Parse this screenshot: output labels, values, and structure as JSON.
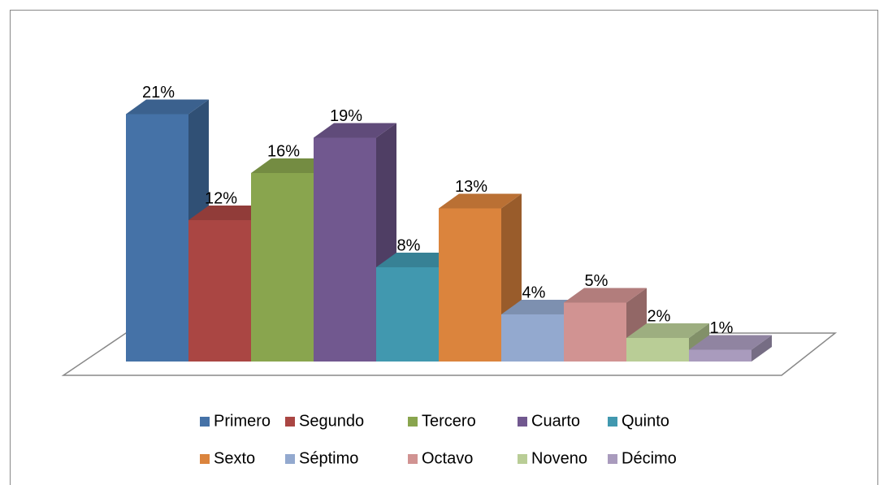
{
  "chart_data": {
    "type": "bar3d",
    "categories": [
      "Primero",
      "Segundo",
      "Tercero",
      "Cuarto",
      "Quinto",
      "Sexto",
      "Séptimo",
      "Octavo",
      "Noveno",
      "Décimo"
    ],
    "values": [
      21,
      12,
      16,
      19,
      8,
      13,
      4,
      5,
      2,
      1
    ],
    "value_labels": [
      "21%",
      "12%",
      "16%",
      "19%",
      "8%",
      "13%",
      "4%",
      "5%",
      "2%",
      "1%"
    ],
    "colors": [
      "#4572a7",
      "#aa4643",
      "#89a54e",
      "#71588f",
      "#4198af",
      "#db843d",
      "#93a9cf",
      "#d19392",
      "#b9cd96",
      "#a99bbd"
    ]
  }
}
